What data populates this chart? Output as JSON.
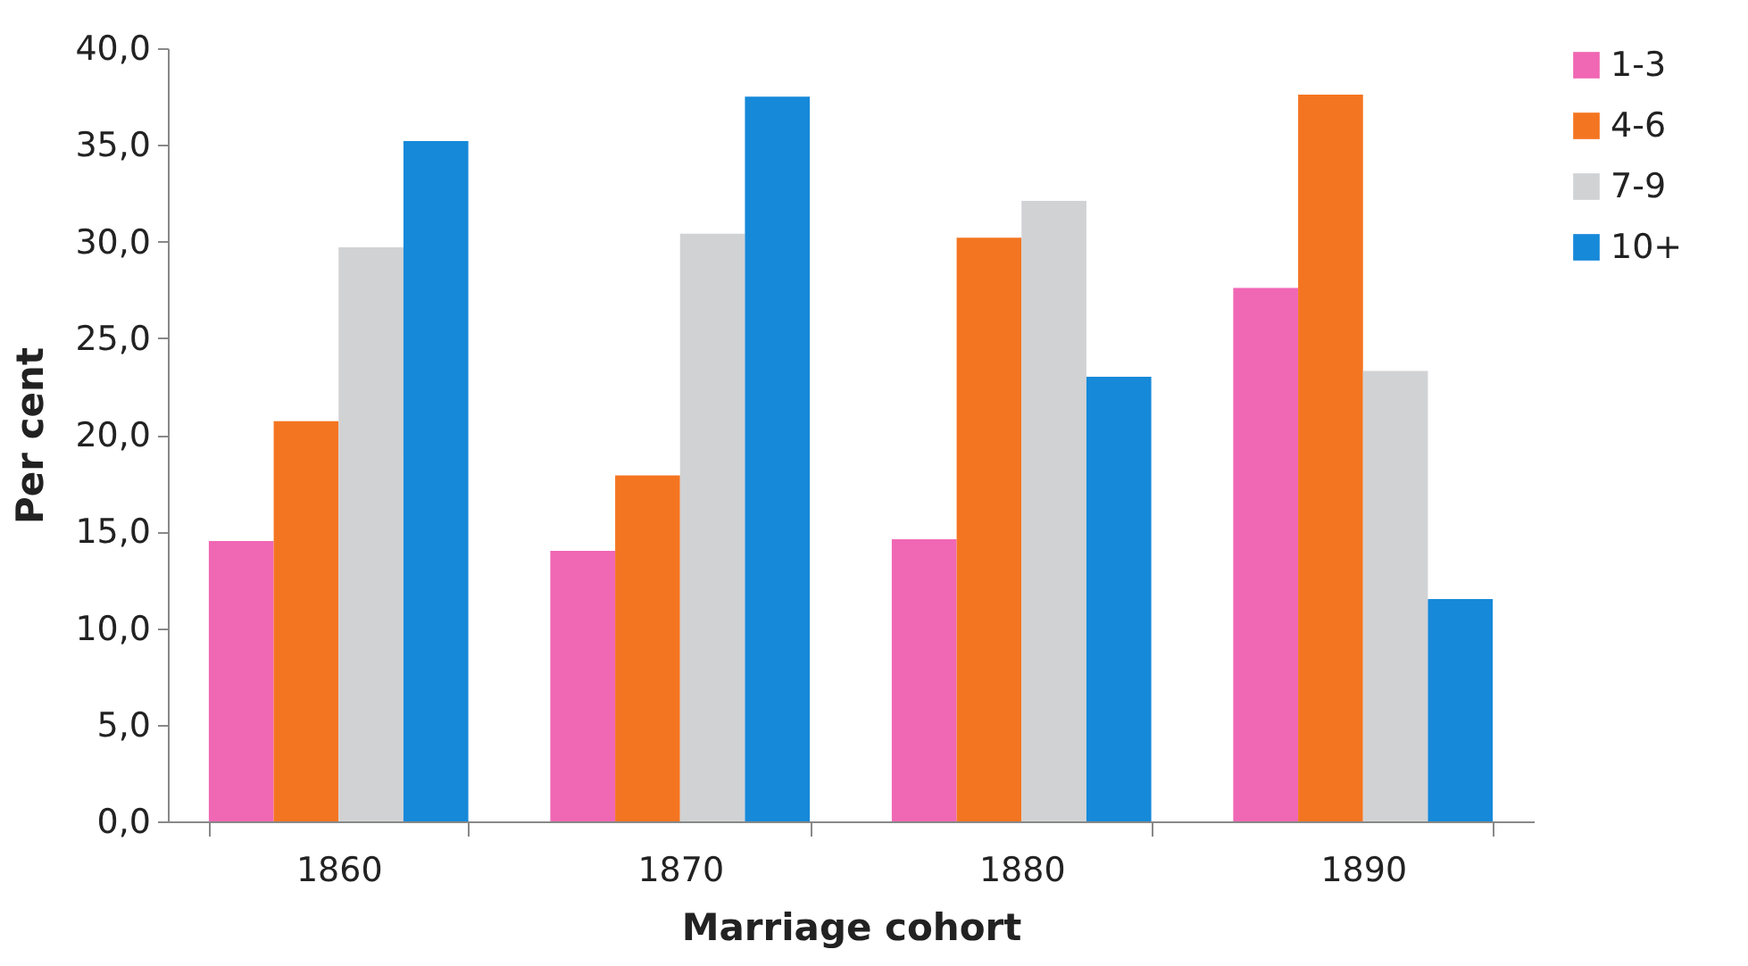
{
  "chart_data": {
    "type": "bar",
    "xlabel": "Marriage cohort",
    "ylabel": "Per cent",
    "categories": [
      "1860",
      "1870",
      "1880",
      "1890"
    ],
    "series": [
      {
        "name": "1-3",
        "color": "#f067b4",
        "values": [
          14.5,
          14.0,
          14.6,
          27.6
        ]
      },
      {
        "name": "4-6",
        "color": "#f47521",
        "values": [
          20.7,
          17.9,
          30.2,
          37.6
        ]
      },
      {
        "name": "7-9",
        "color": "#d1d2d4",
        "values": [
          29.7,
          30.4,
          32.1,
          23.3
        ]
      },
      {
        "name": "10+",
        "color": "#1689d9",
        "values": [
          35.2,
          37.5,
          23.0,
          11.5
        ]
      }
    ],
    "ylim": [
      0,
      40
    ],
    "yticks": [
      {
        "value": 0,
        "label": "0,0"
      },
      {
        "value": 5,
        "label": "5,0"
      },
      {
        "value": 10,
        "label": "10,0"
      },
      {
        "value": 15,
        "label": "15,0"
      },
      {
        "value": 20,
        "label": "20,0"
      },
      {
        "value": 25,
        "label": "25,0"
      },
      {
        "value": 30,
        "label": "30,0"
      },
      {
        "value": 35,
        "label": "35,0"
      },
      {
        "value": 40,
        "label": "40,0"
      }
    ],
    "grid": false,
    "legend": "right"
  }
}
